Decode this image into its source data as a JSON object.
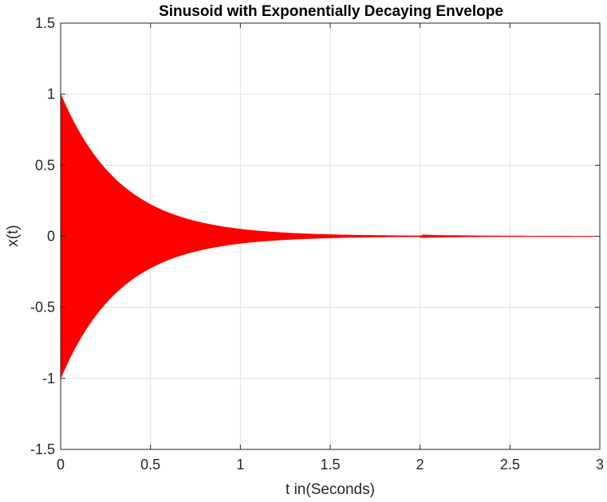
{
  "chart_data": {
    "type": "line",
    "title": "Sinusoid with Exponentially Decaying Envelope",
    "xlabel": "t in(Seconds)",
    "ylabel": "x(t)",
    "xlim": [
      0,
      3
    ],
    "ylim": [
      -1.5,
      1.5
    ],
    "x_ticks": [
      "0",
      "0.5",
      "1",
      "1.5",
      "2",
      "2.5",
      "3"
    ],
    "y_ticks": [
      "1.5",
      "1",
      "0.5",
      "0",
      "-0.5",
      "-1",
      "-1.5"
    ],
    "x_tick_values": [
      0,
      0.5,
      1,
      1.5,
      2,
      2.5,
      3
    ],
    "y_tick_values": [
      1.5,
      1,
      0.5,
      0,
      -0.5,
      -1,
      -1.5
    ],
    "grid": true,
    "series": [
      {
        "function": "x(t) = exp(-3 t) * sin(2*pi*f*t)",
        "envelope_amplitude": 1,
        "decay_rate_per_second": 3,
        "x_range": [
          0,
          3
        ],
        "color": "#ff0000",
        "envelope_points": {
          "t": [
            0,
            0.1,
            0.2,
            0.3,
            0.4,
            0.5,
            0.6,
            0.7,
            0.8,
            0.9,
            1.0,
            1.2,
            1.4,
            1.6,
            1.8,
            2.0,
            2.5,
            3.0
          ],
          "upper": [
            1,
            0.741,
            0.549,
            0.407,
            0.301,
            0.223,
            0.165,
            0.122,
            0.091,
            0.067,
            0.05,
            0.027,
            0.015,
            0.008,
            0.005,
            0.002,
            0.001,
            0.0001
          ],
          "lower": [
            -1,
            -0.741,
            -0.549,
            -0.407,
            -0.301,
            -0.223,
            -0.165,
            -0.122,
            -0.091,
            -0.067,
            -0.05,
            -0.027,
            -0.015,
            -0.008,
            -0.005,
            -0.002,
            -0.001,
            -0.0001
          ]
        }
      }
    ]
  },
  "colors": {
    "series": "#ff0000",
    "axis": "#262626",
    "grid": "#dfdfdf",
    "background": "#ffffff"
  }
}
